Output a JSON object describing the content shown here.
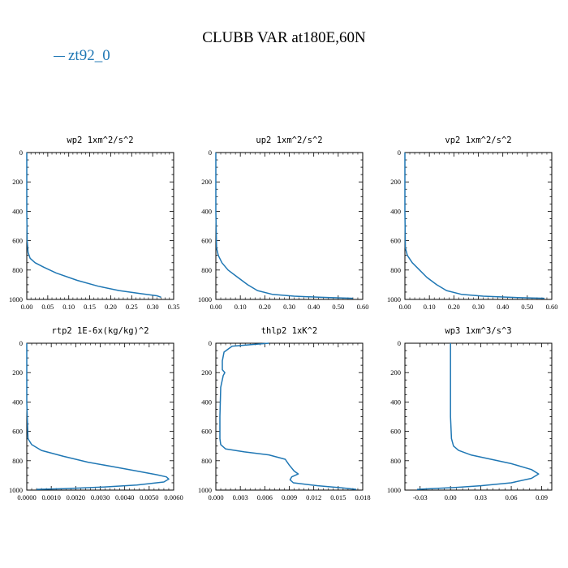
{
  "title": "CLUBB VAR at180E,60N",
  "legend": {
    "label": "zt92_0",
    "color": "#1f77b4"
  },
  "chart_data": [
    {
      "type": "line",
      "title": "wp2   1xm^2/s^2",
      "xlim": [
        0,
        0.35
      ],
      "ylim": [
        1000,
        0
      ],
      "xticks": [
        "0.00",
        "0.05",
        "0.10",
        "0.15",
        "0.20",
        "0.25",
        "0.30",
        "0.35"
      ],
      "xtick_values": [
        0,
        0.05,
        0.1,
        0.15,
        0.2,
        0.25,
        0.3,
        0.35
      ],
      "yticks": [
        "0",
        "200",
        "400",
        "600",
        "800",
        "1000"
      ],
      "ytick_values": [
        0,
        200,
        400,
        600,
        800,
        1000
      ],
      "series": [
        {
          "name": "zt92_0",
          "x": [
            0,
            0,
            0.001,
            0.003,
            0.008,
            0.02,
            0.04,
            0.07,
            0.12,
            0.17,
            0.22,
            0.27,
            0.31,
            0.32
          ],
          "y": [
            0,
            400,
            600,
            680,
            720,
            750,
            780,
            820,
            870,
            910,
            940,
            960,
            975,
            985
          ]
        }
      ]
    },
    {
      "type": "line",
      "title": "up2   1xm^2/s^2",
      "xlim": [
        0,
        0.6
      ],
      "ylim": [
        1000,
        0
      ],
      "xticks": [
        "0.00",
        "0.10",
        "0.20",
        "0.30",
        "0.40",
        "0.50",
        "0.60"
      ],
      "xtick_values": [
        0,
        0.1,
        0.2,
        0.3,
        0.4,
        0.5,
        0.6
      ],
      "yticks": [
        "0",
        "200",
        "400",
        "600",
        "800",
        "1000"
      ],
      "ytick_values": [
        0,
        200,
        400,
        600,
        800,
        1000
      ],
      "series": [
        {
          "name": "zt92_0",
          "x": [
            0,
            0,
            0.003,
            0.01,
            0.025,
            0.05,
            0.09,
            0.13,
            0.17,
            0.23,
            0.32,
            0.42,
            0.52,
            0.56
          ],
          "y": [
            0,
            400,
            650,
            700,
            750,
            800,
            850,
            900,
            940,
            965,
            978,
            985,
            990,
            992
          ]
        }
      ]
    },
    {
      "type": "line",
      "title": "vp2   1xm^2/s^2",
      "xlim": [
        0,
        0.6
      ],
      "ylim": [
        1000,
        0
      ],
      "xticks": [
        "0.00",
        "0.10",
        "0.20",
        "0.30",
        "0.40",
        "0.50",
        "0.60"
      ],
      "xtick_values": [
        0,
        0.1,
        0.2,
        0.3,
        0.4,
        0.5,
        0.6
      ],
      "yticks": [
        "0",
        "200",
        "400",
        "600",
        "800",
        "1000"
      ],
      "ytick_values": [
        0,
        200,
        400,
        600,
        800,
        1000
      ],
      "series": [
        {
          "name": "zt92_0",
          "x": [
            0,
            0,
            0.002,
            0.01,
            0.03,
            0.06,
            0.09,
            0.13,
            0.17,
            0.23,
            0.32,
            0.42,
            0.52,
            0.57
          ],
          "y": [
            0,
            400,
            650,
            700,
            750,
            800,
            850,
            900,
            940,
            965,
            978,
            985,
            990,
            992
          ]
        }
      ]
    },
    {
      "type": "line",
      "title": "rtp2   1E-6x(kg/kg)^2",
      "xlim": [
        0,
        0.006
      ],
      "ylim": [
        1000,
        0
      ],
      "xticks": [
        "0.0000",
        "0.0010",
        "0.0020",
        "0.0030",
        "0.0040",
        "0.0050",
        "0.0060"
      ],
      "xtick_values": [
        0,
        0.001,
        0.002,
        0.003,
        0.004,
        0.005,
        0.006
      ],
      "yticks": [
        "0",
        "200",
        "400",
        "600",
        "800",
        "1000"
      ],
      "ytick_values": [
        0,
        200,
        400,
        600,
        800,
        1000
      ],
      "series": [
        {
          "name": "zt92_0",
          "x": [
            0,
            0,
            5e-05,
            0.0002,
            0.0006,
            0.0015,
            0.0025,
            0.0035,
            0.0045,
            0.0053,
            0.0057,
            0.0058,
            0.0056,
            0.0045,
            0.003,
            0.0015,
            0.0004
          ],
          "y": [
            0,
            400,
            650,
            690,
            730,
            770,
            810,
            840,
            870,
            895,
            910,
            925,
            945,
            965,
            980,
            990,
            995
          ]
        }
      ]
    },
    {
      "type": "line",
      "title": "thlp2   1xK^2",
      "xlim": [
        0,
        0.018
      ],
      "ylim": [
        1000,
        0
      ],
      "xticks": [
        "0.000",
        "0.003",
        "0.006",
        "0.009",
        "0.012",
        "0.015",
        "0.018"
      ],
      "xtick_values": [
        0,
        0.003,
        0.006,
        0.009,
        0.012,
        0.015,
        0.018
      ],
      "yticks": [
        "0",
        "200",
        "400",
        "600",
        "800",
        "1000"
      ],
      "ytick_values": [
        0,
        200,
        400,
        600,
        800,
        1000
      ],
      "series": [
        {
          "name": "zt92_0",
          "x": [
            0.0065,
            0.002,
            0.001,
            0.0008,
            0.0008,
            0.0011,
            0.0009,
            0.0006,
            0.0005,
            0.0005,
            0.0006,
            0.0012,
            0.0035,
            0.0065,
            0.0085,
            0.009,
            0.0096,
            0.0101,
            0.0093,
            0.0091,
            0.0095,
            0.0125,
            0.0155,
            0.0172
          ],
          "y": [
            0,
            20,
            60,
            120,
            180,
            200,
            220,
            300,
            500,
            650,
            690,
            720,
            740,
            760,
            790,
            830,
            870,
            890,
            910,
            930,
            950,
            970,
            985,
            995
          ]
        }
      ]
    },
    {
      "type": "line",
      "title": "wp3   1xm^3/s^3",
      "xlim": [
        -0.045,
        0.1
      ],
      "ylim": [
        1000,
        0
      ],
      "xticks": [
        "-0.03",
        "0.00",
        "0.03",
        "0.06",
        "0.09"
      ],
      "xtick_values": [
        -0.03,
        0,
        0.03,
        0.06,
        0.09
      ],
      "yticks": [
        "0",
        "200",
        "400",
        "600",
        "800",
        "1000"
      ],
      "ytick_values": [
        0,
        200,
        400,
        600,
        800,
        1000
      ],
      "series": [
        {
          "name": "zt92_0",
          "x": [
            0,
            0,
            0.001,
            0.003,
            0.008,
            0.02,
            0.04,
            0.06,
            0.08,
            0.087,
            0.08,
            0.06,
            0.03,
            0.005,
            -0.02,
            -0.033
          ],
          "y": [
            0,
            500,
            650,
            700,
            730,
            760,
            790,
            820,
            860,
            890,
            920,
            950,
            970,
            982,
            990,
            995
          ]
        }
      ]
    }
  ]
}
